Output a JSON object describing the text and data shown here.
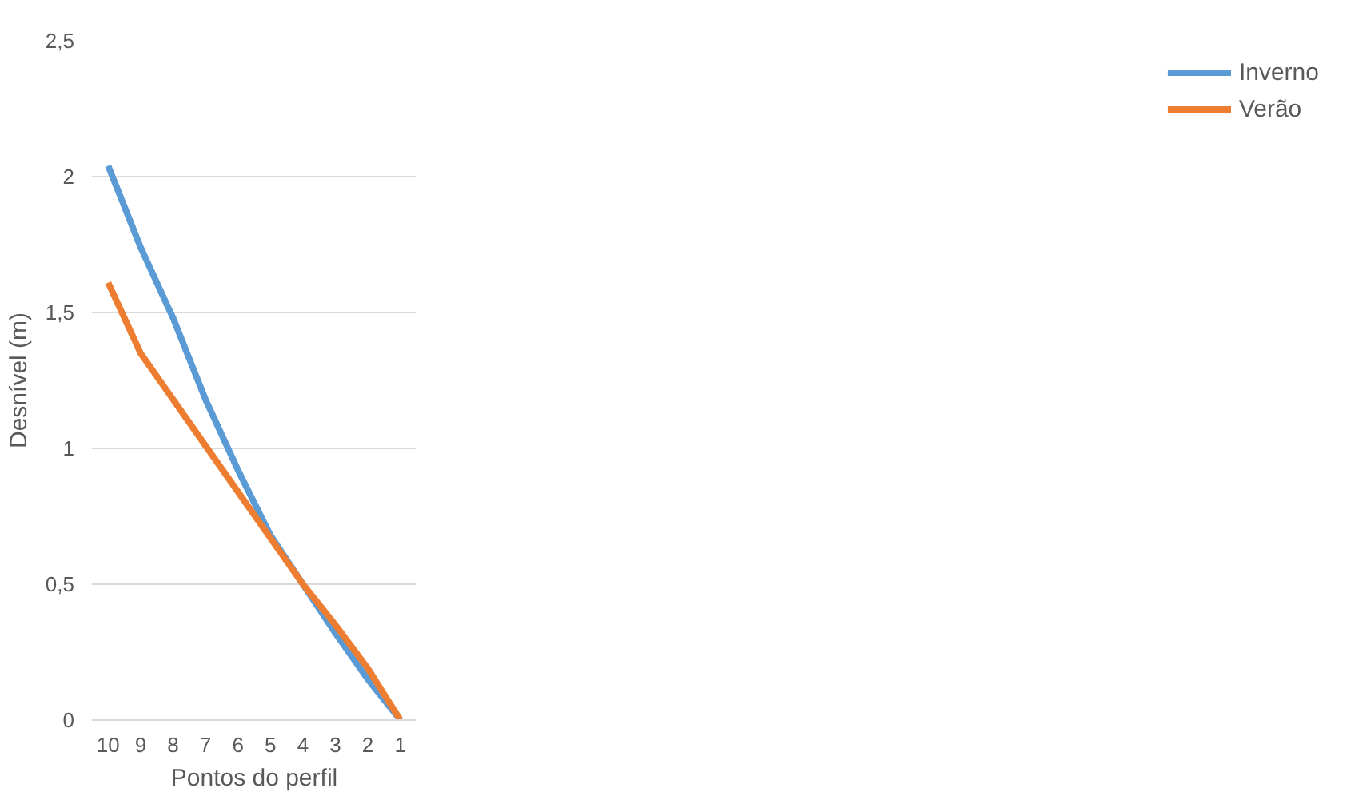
{
  "chart_data": {
    "type": "line",
    "xlabel": "Pontos do perfil",
    "ylabel": "Desnível (m)",
    "categories": [
      "10",
      "9",
      "8",
      "7",
      "6",
      "5",
      "4",
      "3",
      "2",
      "1"
    ],
    "series": [
      {
        "name": "Inverno",
        "color": "#5b9bd5",
        "values": [
          2.04,
          1.74,
          1.48,
          1.18,
          0.92,
          0.68,
          0.5,
          0.32,
          0.15,
          0
        ]
      },
      {
        "name": "Verão",
        "color": "#ed7d31",
        "values": [
          1.61,
          1.35,
          1.18,
          1.01,
          0.84,
          0.67,
          0.5,
          0.35,
          0.19,
          0
        ]
      }
    ],
    "ylim": [
      0,
      2.5
    ],
    "yticks": [
      0,
      {
        "value": 0.5,
        "label": "0,5"
      },
      1,
      {
        "value": 1.5,
        "label": "1,5"
      },
      2,
      {
        "value": 2.5,
        "label": "2,5"
      }
    ],
    "grid": "y",
    "legend": "right",
    "marker": "none",
    "line_style": "solid"
  }
}
